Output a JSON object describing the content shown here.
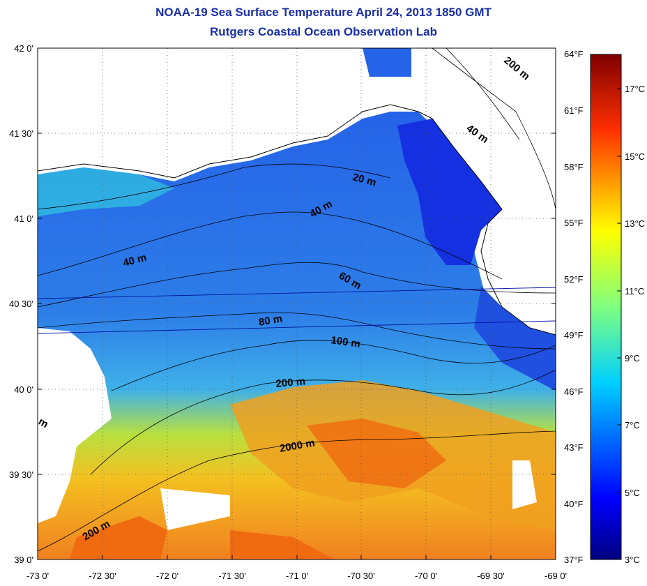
{
  "title": "NOAA-19 Sea Surface Temperature April 24, 2013 1850 GMT",
  "subtitle": "Rutgers Coastal Ocean Observation Lab",
  "lat_ticks": [
    "42 0'",
    "41 30'",
    "41 0'",
    "40 30'",
    "40 0'",
    "39 30'",
    "39 0'"
  ],
  "lon_ticks": [
    "-73 0'",
    "-72 30'",
    "-72 0'",
    "-71 30'",
    "-71 0'",
    "-70 30'",
    "-70 0'",
    "-69 30'",
    "-69 0'"
  ],
  "fahrenheit_ticks": [
    "64°F",
    "61°F",
    "58°F",
    "55°F",
    "52°F",
    "49°F",
    "46°F",
    "43°F",
    "40°F",
    "37°F"
  ],
  "celsius_ticks": [
    "17°C",
    "15°C",
    "13°C",
    "11°C",
    "9°C",
    "7°C",
    "5°C",
    "3°C"
  ],
  "contour_labels": {
    "c20": "20 m",
    "c40a": "40 m",
    "c40b": "40 m",
    "c40c": "40 m",
    "c60": "60 m",
    "c80": "80 m",
    "c100": "100 m",
    "c200a": "200 m",
    "c200b": "200 m",
    "c200c": "200 m",
    "c2000": "2000 m",
    "cm": "m"
  },
  "colors": {
    "title": "#1a2fa8",
    "cold": "#1a55e0",
    "warm": "#f07a10",
    "land": "#ffffff"
  },
  "chart_data": {
    "type": "heatmap",
    "title": "NOAA-19 Sea Surface Temperature April 24, 2013 1850 GMT",
    "subtitle": "Rutgers Coastal Ocean Observation Lab",
    "x_range": [
      -73,
      -69
    ],
    "y_range": [
      39,
      42
    ],
    "colorbar_range_celsius": [
      3,
      18
    ],
    "colorbar_range_fahrenheit": [
      37,
      64
    ],
    "grid": true
  }
}
